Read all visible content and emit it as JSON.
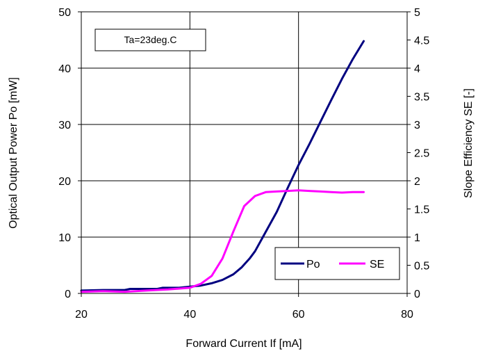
{
  "chart_data": {
    "type": "line",
    "annotation": "Ta=23deg.C",
    "xlabel": "Forward Current If [mA]",
    "ylabel_left": "Optical Output Power Po [mW]",
    "ylabel_right": "Slope Efficiency  SE [-]",
    "xlim": [
      20,
      80
    ],
    "ylim_left": [
      0,
      50
    ],
    "ylim_right": [
      0,
      5
    ],
    "x_ticks": [
      "20",
      "40",
      "60",
      "80"
    ],
    "y_left_ticks": [
      "0",
      "10",
      "20",
      "30",
      "40",
      "50"
    ],
    "y_right_ticks": [
      "0",
      "0.5",
      "1",
      "1.5",
      "2",
      "2.5",
      "3",
      "3.5",
      "4",
      "4.5",
      "5"
    ],
    "grid": true,
    "legend_position": "bottom-right",
    "series": [
      {
        "name": "Po",
        "axis": "left",
        "color": "#000080",
        "points": [
          [
            20,
            0.5
          ],
          [
            24,
            0.6
          ],
          [
            28,
            0.6
          ],
          [
            29,
            0.8
          ],
          [
            34,
            0.8
          ],
          [
            35,
            1.0
          ],
          [
            38,
            1.0
          ],
          [
            40,
            1.2
          ],
          [
            42,
            1.4
          ],
          [
            44,
            1.8
          ],
          [
            46,
            2.4
          ],
          [
            48,
            3.4
          ],
          [
            49.5,
            4.6
          ],
          [
            51,
            6.2
          ],
          [
            52,
            7.5
          ],
          [
            54,
            11.0
          ],
          [
            56,
            14.5
          ],
          [
            58,
            18.7
          ],
          [
            60,
            22.8
          ],
          [
            62,
            26.5
          ],
          [
            64,
            30.4
          ],
          [
            66,
            34.3
          ],
          [
            68,
            38.1
          ],
          [
            70,
            41.6
          ],
          [
            72,
            44.8
          ]
        ]
      },
      {
        "name": "SE",
        "axis": "right",
        "color": "#ff00ff",
        "points": [
          [
            20,
            0.03
          ],
          [
            24,
            0.04
          ],
          [
            28,
            0.03
          ],
          [
            32,
            0.05
          ],
          [
            36,
            0.07
          ],
          [
            40,
            0.1
          ],
          [
            42,
            0.17
          ],
          [
            44,
            0.31
          ],
          [
            46,
            0.62
          ],
          [
            48,
            1.1
          ],
          [
            50,
            1.55
          ],
          [
            52,
            1.73
          ],
          [
            54,
            1.8
          ],
          [
            56,
            1.81
          ],
          [
            58,
            1.82
          ],
          [
            60,
            1.83
          ],
          [
            62,
            1.82
          ],
          [
            64,
            1.81
          ],
          [
            66,
            1.8
          ],
          [
            68,
            1.79
          ],
          [
            70,
            1.8
          ],
          [
            72,
            1.8
          ]
        ]
      }
    ]
  }
}
